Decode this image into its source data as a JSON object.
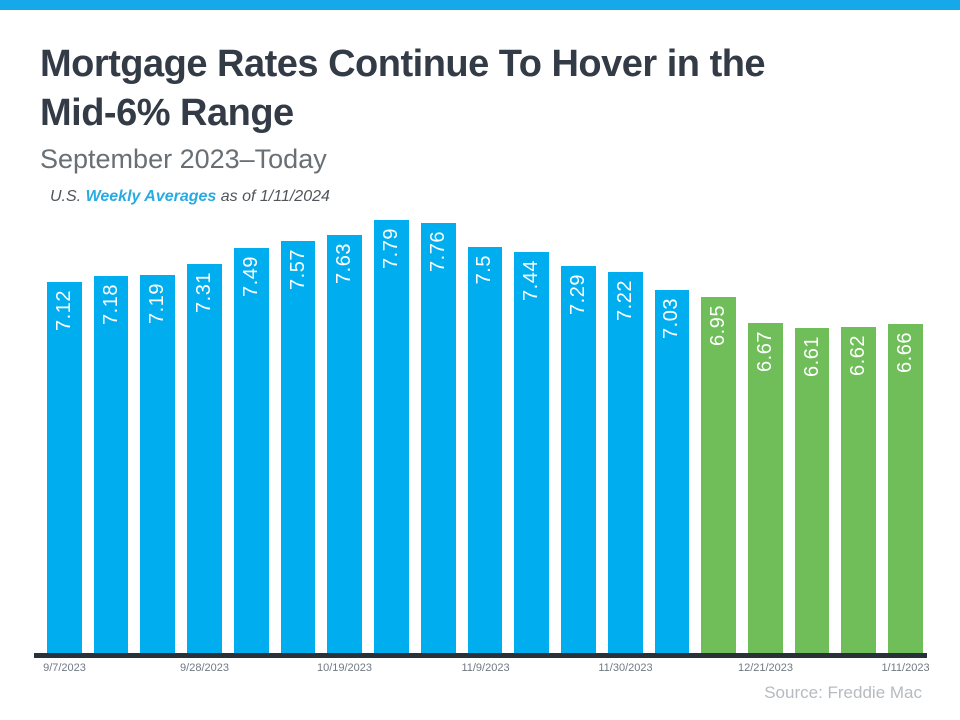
{
  "page": {
    "accent_strip_color": "#16A9EA",
    "background_color": "#ffffff"
  },
  "header": {
    "title_line1": "Mortgage Rates Continue To Hover in the",
    "title_line2": "Mid-6% Range",
    "subtitle": "September 2023–Today",
    "note_prefix": "U.S. ",
    "note_link": "Weekly Averages",
    "note_suffix": " as of 1/11/2024"
  },
  "footer": {
    "source": "Source: Freddie Mac"
  },
  "chart_data": {
    "type": "bar",
    "title": "Mortgage Rates Continue To Hover in the Mid-6% Range",
    "subtitle": "September 2023–Today",
    "xlabel": "",
    "ylabel": "",
    "values": [
      7.12,
      7.18,
      7.19,
      7.31,
      7.49,
      7.57,
      7.63,
      7.79,
      7.76,
      7.5,
      7.44,
      7.29,
      7.22,
      7.03,
      6.95,
      6.67,
      6.61,
      6.62,
      6.66
    ],
    "bar_colors": [
      "#00AEEF",
      "#00AEEF",
      "#00AEEF",
      "#00AEEF",
      "#00AEEF",
      "#00AEEF",
      "#00AEEF",
      "#00AEEF",
      "#00AEEF",
      "#00AEEF",
      "#00AEEF",
      "#00AEEF",
      "#00AEEF",
      "#00AEEF",
      "#6FBE59",
      "#6FBE59",
      "#6FBE59",
      "#6FBE59",
      "#6FBE59"
    ],
    "colors": {
      "blue_bars": "#00AEEF",
      "green_bars": "#6FBE59",
      "axis_line": "#29323B"
    },
    "value_label_color": "#ffffff",
    "x_tick_labels": [
      {
        "index": 0,
        "label": "9/7/2023"
      },
      {
        "index": 3,
        "label": "9/28/2023"
      },
      {
        "index": 6,
        "label": "10/19/2023"
      },
      {
        "index": 9,
        "label": "11/9/2023"
      },
      {
        "index": 12,
        "label": "11/30/2023"
      },
      {
        "index": 15,
        "label": "12/21/2023"
      },
      {
        "index": 18,
        "label": "1/11/2023"
      }
    ],
    "ylim": [
      3.05,
      7.85
    ],
    "grid": false,
    "legend": false
  }
}
